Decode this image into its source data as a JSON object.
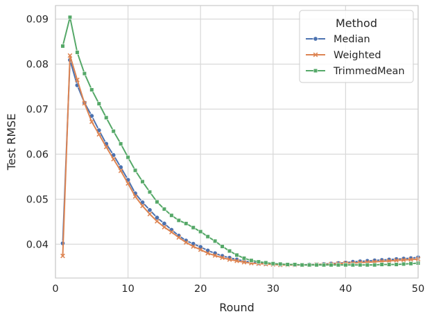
{
  "chart_data": {
    "type": "line",
    "xlabel": "Round",
    "ylabel": "Test RMSE",
    "xlim": [
      0,
      50
    ],
    "ylim": [
      0.0325,
      0.093
    ],
    "xticks": [
      0,
      10,
      20,
      30,
      40,
      50
    ],
    "yticks": [
      0.04,
      0.05,
      0.06,
      0.07,
      0.08,
      0.09
    ],
    "ytick_labels": [
      "0.04",
      "0.05",
      "0.06",
      "0.07",
      "0.08",
      "0.09"
    ],
    "grid": true,
    "legend": {
      "title": "Method",
      "placement": "top-right"
    },
    "x": [
      1,
      2,
      3,
      4,
      5,
      6,
      7,
      8,
      9,
      10,
      11,
      12,
      13,
      14,
      15,
      16,
      17,
      18,
      19,
      20,
      21,
      22,
      23,
      24,
      25,
      26,
      27,
      28,
      29,
      30,
      31,
      32,
      33,
      34,
      35,
      36,
      37,
      38,
      39,
      40,
      41,
      42,
      43,
      44,
      45,
      46,
      47,
      48,
      49,
      50
    ],
    "series": [
      {
        "name": "Median",
        "color": "#4c72b0",
        "marker": "circle",
        "values": [
          0.0402,
          0.0809,
          0.0753,
          0.0714,
          0.0685,
          0.0653,
          0.0623,
          0.0598,
          0.0571,
          0.0543,
          0.0513,
          0.0493,
          0.0476,
          0.0459,
          0.0446,
          0.0432,
          0.0419,
          0.0408,
          0.0401,
          0.0394,
          0.0386,
          0.038,
          0.0374,
          0.037,
          0.0366,
          0.0363,
          0.036,
          0.0358,
          0.0357,
          0.0356,
          0.0355,
          0.0355,
          0.0354,
          0.0354,
          0.0355,
          0.0355,
          0.0356,
          0.0357,
          0.0358,
          0.0359,
          0.0361,
          0.0362,
          0.0363,
          0.0364,
          0.0365,
          0.0366,
          0.0367,
          0.0368,
          0.0369,
          0.0371
        ]
      },
      {
        "name": "Weighted",
        "color": "#dd8452",
        "marker": "x",
        "values": [
          0.0374,
          0.0819,
          0.0765,
          0.0713,
          0.0672,
          0.0644,
          0.0616,
          0.0589,
          0.0563,
          0.0535,
          0.0506,
          0.0485,
          0.0467,
          0.0451,
          0.0438,
          0.0427,
          0.0415,
          0.0404,
          0.0395,
          0.0388,
          0.038,
          0.0375,
          0.037,
          0.0366,
          0.0363,
          0.036,
          0.0358,
          0.0357,
          0.0356,
          0.0355,
          0.0354,
          0.0354,
          0.0354,
          0.0354,
          0.0354,
          0.0355,
          0.0355,
          0.0356,
          0.0357,
          0.0358,
          0.0358,
          0.0359,
          0.036,
          0.0361,
          0.0362,
          0.0363,
          0.0364,
          0.0365,
          0.0366,
          0.0367
        ]
      },
      {
        "name": "TrimmedMean",
        "color": "#55a868",
        "marker": "square",
        "values": [
          0.084,
          0.0904,
          0.0826,
          0.0779,
          0.0743,
          0.0712,
          0.0681,
          0.0651,
          0.0623,
          0.0593,
          0.0564,
          0.0539,
          0.0516,
          0.0494,
          0.0478,
          0.0464,
          0.0453,
          0.0446,
          0.0437,
          0.0428,
          0.0417,
          0.0407,
          0.0395,
          0.0385,
          0.0376,
          0.0369,
          0.0364,
          0.0361,
          0.0359,
          0.0357,
          0.0356,
          0.0355,
          0.0355,
          0.0354,
          0.0354,
          0.0354,
          0.0354,
          0.0354,
          0.0354,
          0.0354,
          0.0354,
          0.0354,
          0.0354,
          0.0354,
          0.0355,
          0.0355,
          0.0355,
          0.0356,
          0.0357,
          0.0358
        ]
      }
    ]
  }
}
